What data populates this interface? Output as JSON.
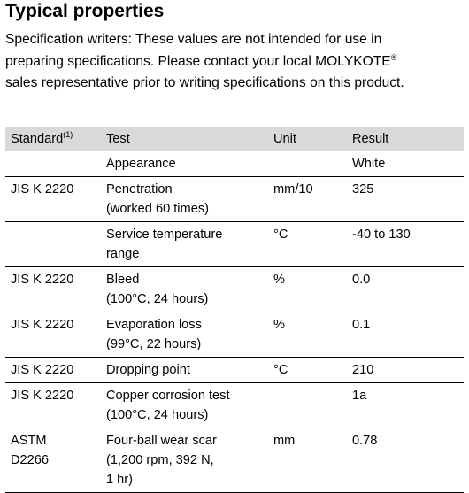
{
  "heading": "Typical properties",
  "intro": {
    "line1": "Specification writers: These values are not intended for use in",
    "line2_text": "preparing specifications. Please contact your local MOLYKOTE",
    "line2_sup": "®",
    "line3": "sales representative prior to writing specifications on this product."
  },
  "table": {
    "headers": {
      "standard": "Standard",
      "standard_note": "(1)",
      "test": "Test",
      "unit": "Unit",
      "result": "Result"
    },
    "rows": [
      {
        "standard": "",
        "standard2": "",
        "test": "Appearance",
        "test2": "",
        "test3": "",
        "unit": "",
        "result": "White"
      },
      {
        "standard": "JIS K 2220",
        "standard2": "",
        "test": "Penetration",
        "test2": "(worked 60 times)",
        "test3": "",
        "unit": "mm/10",
        "result": "325"
      },
      {
        "standard": "",
        "standard2": "",
        "test": "Service temperature",
        "test2": "range",
        "test3": "",
        "unit": "°C",
        "result": "-40 to 130"
      },
      {
        "standard": "JIS K 2220",
        "standard2": "",
        "test": "Bleed",
        "test2": "(100°C, 24 hours)",
        "test3": "",
        "unit": "%",
        "result": "0.0"
      },
      {
        "standard": "JIS K 2220",
        "standard2": "",
        "test": "Evaporation loss",
        "test2": "(99°C, 22 hours)",
        "test3": "",
        "unit": "%",
        "result": "0.1"
      },
      {
        "standard": "JIS K 2220",
        "standard2": "",
        "test": "Dropping point",
        "test2": "",
        "test3": "",
        "unit": "°C",
        "result": "210"
      },
      {
        "standard": "JIS K 2220",
        "standard2": "",
        "test": "Copper corrosion test",
        "test2": "(100°C, 24 hours)",
        "test3": "",
        "unit": "",
        "result": "1a"
      },
      {
        "standard": "ASTM",
        "standard2": "D2266",
        "test": "Four-ball wear scar",
        "test2": "(1,200 rpm, 392 N,",
        "test3": "1 hr)",
        "unit": "mm",
        "result": "0.78"
      }
    ]
  }
}
